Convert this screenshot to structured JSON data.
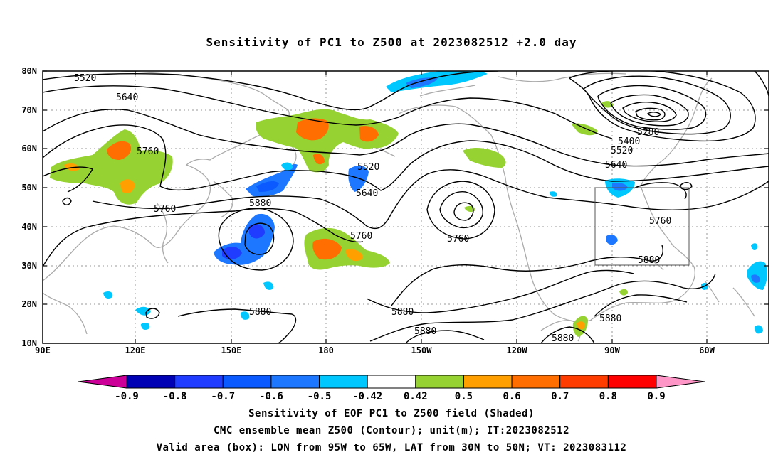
{
  "title": "Sensitivity of PC1 to Z500 at 2023082512 +2.0 day",
  "map": {
    "lat_ticks": [
      "80N",
      "70N",
      "60N",
      "50N",
      "40N",
      "30N",
      "20N",
      "10N"
    ],
    "lon_ticks": [
      "90E",
      "120E",
      "150E",
      "180",
      "150W",
      "120W",
      "90W",
      "60W"
    ],
    "contour_labels": [
      "5520",
      "5640",
      "5760",
      "5760",
      "5520",
      "5640",
      "5760",
      "5760",
      "5880",
      "5880",
      "5880",
      "5880",
      "5280",
      "5400",
      "5520",
      "5640",
      "5760",
      "5880",
      "5880",
      "5880"
    ],
    "contour_color": "#000000",
    "coastline_color": "#aaaaaa",
    "valid_box": {
      "lon_from": "95W",
      "lon_to": "65W",
      "lat_from": "30N",
      "lat_to": "50N"
    }
  },
  "colorbar": {
    "labels": [
      "-0.9",
      "-0.8",
      "-0.7",
      "-0.6",
      "-0.5",
      "-0.42",
      "0.42",
      "0.5",
      "0.6",
      "0.7",
      "0.8",
      "0.9"
    ],
    "colors": [
      "#cc0099",
      "#0000b4",
      "#1f3cff",
      "#0a5aff",
      "#1e78ff",
      "#00c8ff",
      "#ffffff",
      "#96d232",
      "#ffa000",
      "#ff6e00",
      "#ff3c00",
      "#ff0000",
      "#ff96c8"
    ]
  },
  "captions": [
    "Sensitivity of EOF PC1 to Z500 field (Shaded)",
    "CMC ensemble mean Z500 (Contour); unit(m); IT:2023082512",
    "Valid area (box): LON from 95W to 65W, LAT from 30N to 50N; VT: 2023083112"
  ]
}
